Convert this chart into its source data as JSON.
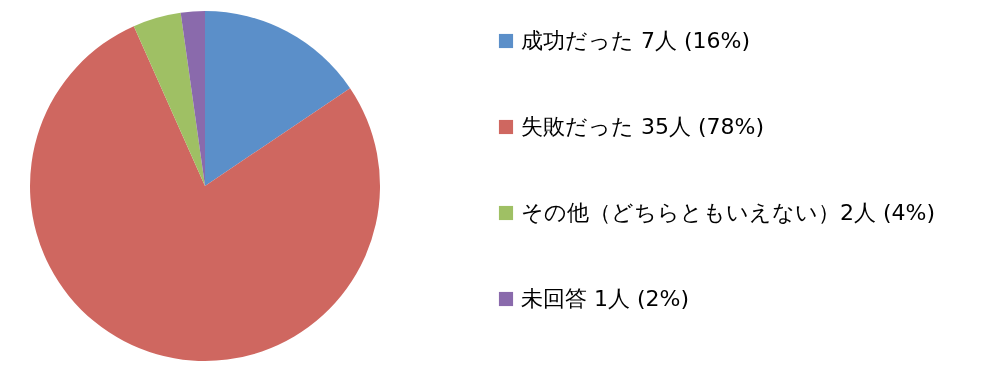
{
  "chart_data": {
    "type": "pie",
    "categories": [
      "成功だった 7人 (16%)",
      "失敗だった 35人 (78%)",
      "その他（どちらともいえない）2人 (4%)",
      "未回答 1人 (2%)"
    ],
    "values": [
      7,
      35,
      2,
      1
    ],
    "colors": [
      "#5b8fc9",
      "#cf6760",
      "#9fc064",
      "#8a6aac"
    ],
    "legend": "right"
  }
}
